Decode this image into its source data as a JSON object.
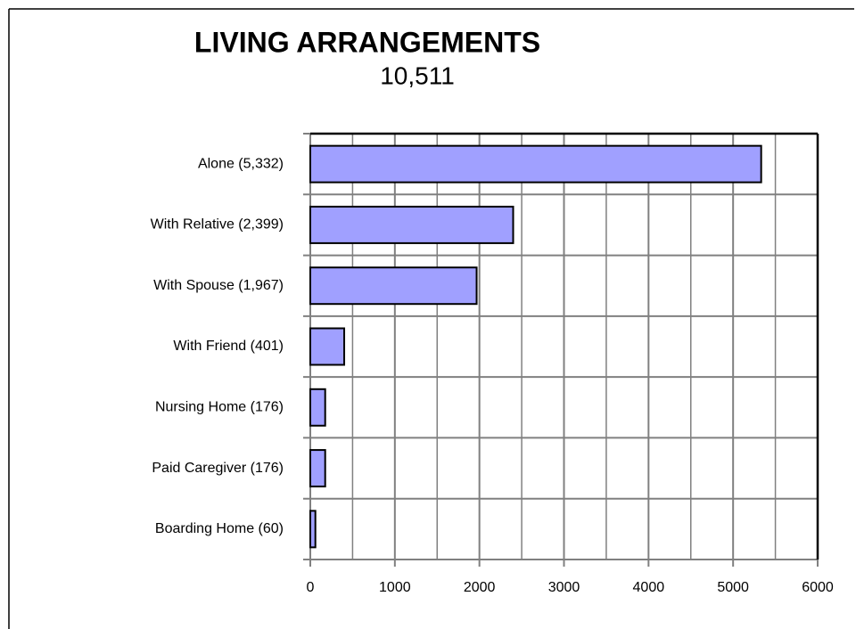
{
  "chart_data": {
    "type": "bar",
    "orientation": "horizontal",
    "title": "LIVING ARRANGEMENTS",
    "subtitle": "10,511",
    "categories": [
      "Alone (5,332)",
      "With Relative (2,399)",
      "With Spouse (1,967)",
      "With Friend (401)",
      "Nursing Home (176)",
      "Paid Caregiver (176)",
      "Boarding Home (60)"
    ],
    "values": [
      5332,
      2399,
      1967,
      401,
      176,
      176,
      60
    ],
    "color": "#a0a0ff",
    "xlim": [
      0,
      6000
    ],
    "xticks": [
      0,
      1000,
      2000,
      3000,
      4000,
      5000,
      6000
    ],
    "xminorticks": [
      500,
      1500,
      2500,
      3500,
      4500,
      5500
    ],
    "grid": true
  }
}
